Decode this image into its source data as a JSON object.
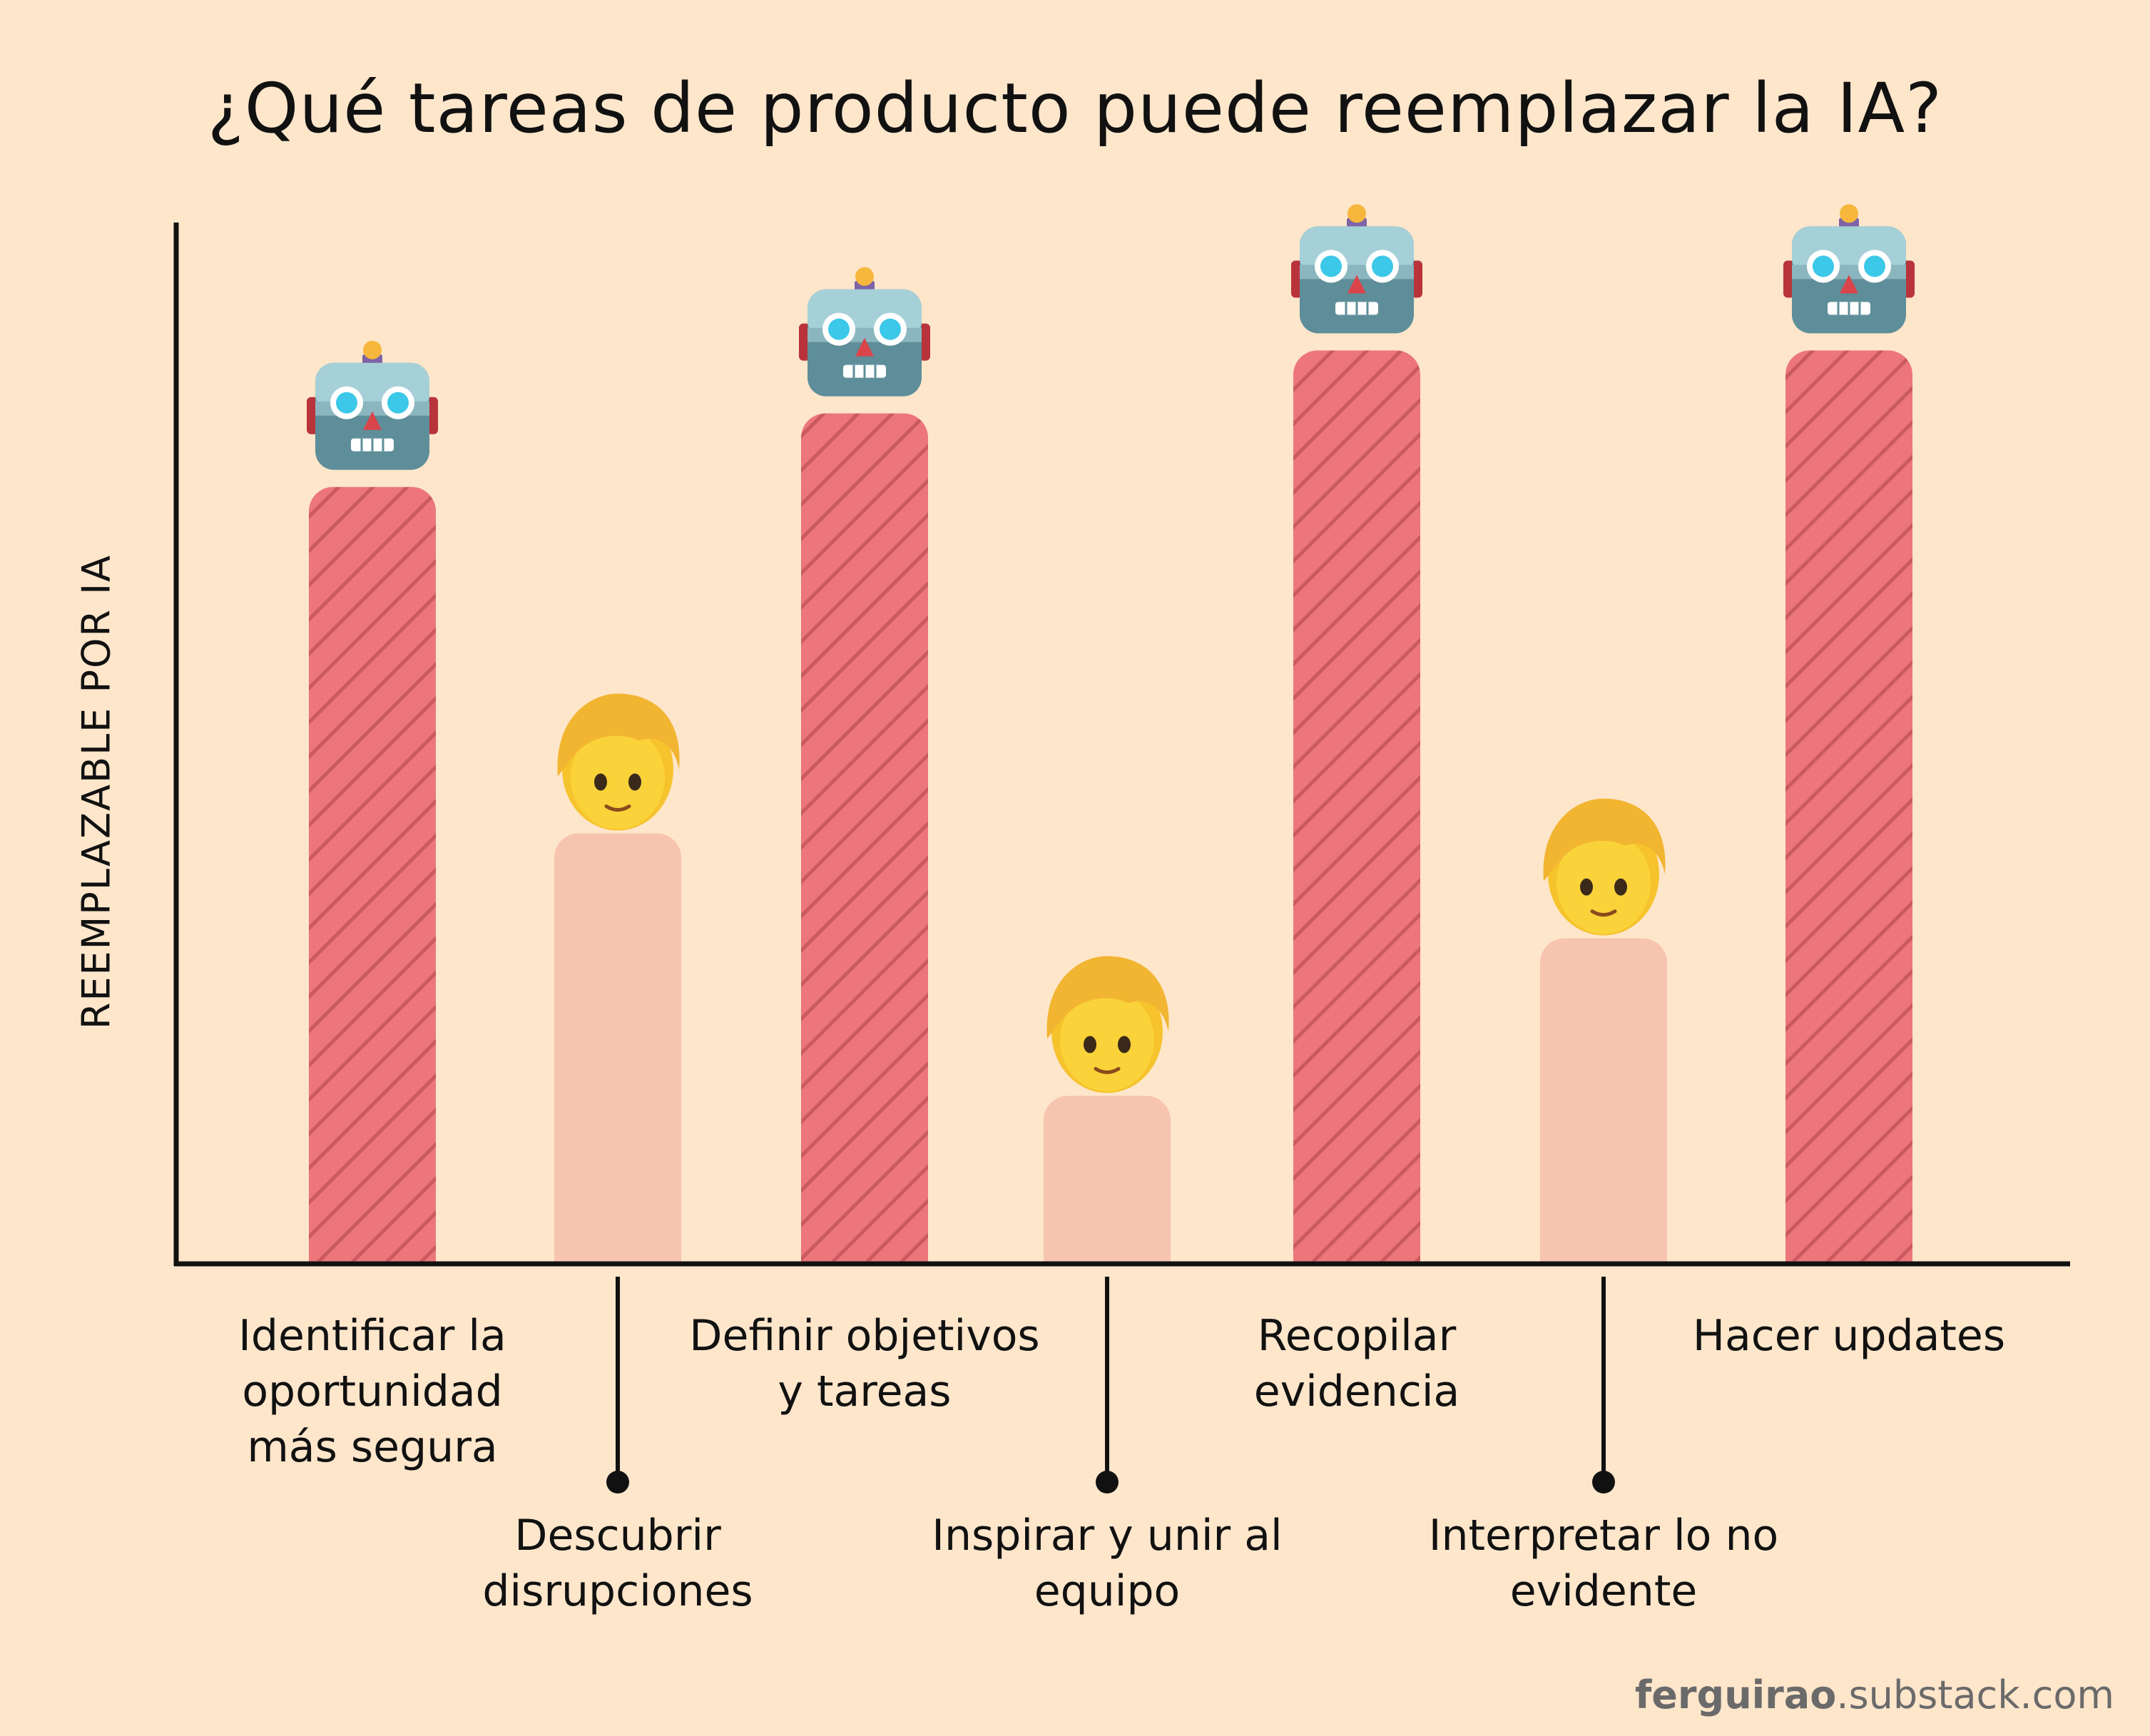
{
  "chart_data": {
    "type": "bar",
    "title": "¿Qué tareas de producto puede reemplazar la IA?",
    "ylabel": "REEMPLAZABLE POR IA",
    "xlabel": "",
    "ylim": [
      0,
      100
    ],
    "categories": [
      "Identificar la oportunidad más segura",
      "Descubrir disrupciones",
      "Definir objetivos y tareas",
      "Inspirar y unir al equipo",
      "Recopilar evidencia",
      "Interpretar lo no evidente",
      "Hacer updates"
    ],
    "category_lines": [
      "Identificar la\noportunidad\nmás segura",
      "Descubrir\ndisrupciones",
      "Definir objetivos\ny tareas",
      "Inspirar y unir al\nequipo",
      "Recopilar\nevidencia",
      "Interpretar lo no\nevidente",
      "Hacer updates"
    ],
    "values": [
      74,
      41,
      81,
      16,
      87,
      31,
      87
    ],
    "markers": [
      "robot-icon",
      "person-icon",
      "robot-icon",
      "person-icon",
      "robot-icon",
      "person-icon",
      "robot-icon"
    ],
    "replaceable": [
      true,
      false,
      true,
      false,
      true,
      false,
      true
    ],
    "colors": {
      "replaceable_bar": "#EC7679",
      "replaceable_hatch": "#C95A60",
      "human_bar": "#F7C4AF",
      "axis": "#111111",
      "background": "#FEE6CB"
    }
  },
  "credit": {
    "bold": "ferguirao",
    "rest": ".substack.com"
  }
}
